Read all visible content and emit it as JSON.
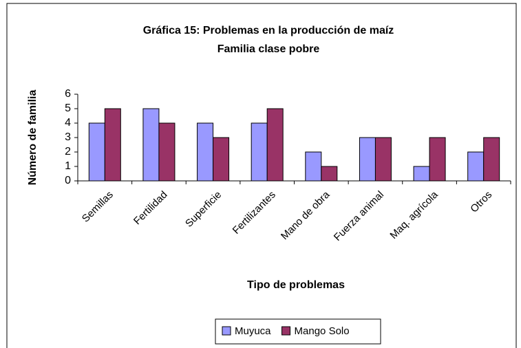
{
  "chart_data": {
    "type": "bar",
    "title": "Gráfica 15: Problemas en la producción de maíz",
    "subtitle": "Familia clase pobre",
    "x_label": "Tipo de problemas",
    "y_label": "Número de familia",
    "categories": [
      "Semillas",
      "Fertilidad",
      "Superficie",
      "Fertilizantes",
      "Mano de obra",
      "Fuerza animal",
      "Maq. agrícola",
      "Otros"
    ],
    "series": [
      {
        "name": "Muyuca",
        "color": "#9999ff",
        "values": [
          4,
          5,
          4,
          4,
          2,
          3,
          1,
          2
        ]
      },
      {
        "name": "Mango Solo",
        "color": "#993366",
        "values": [
          5,
          4,
          3,
          5,
          1,
          3,
          3,
          3
        ]
      }
    ],
    "ylim": [
      0,
      6
    ],
    "yticks": [
      0,
      1,
      2,
      3,
      4,
      5,
      6
    ],
    "grid": false,
    "legend": "bottom"
  }
}
